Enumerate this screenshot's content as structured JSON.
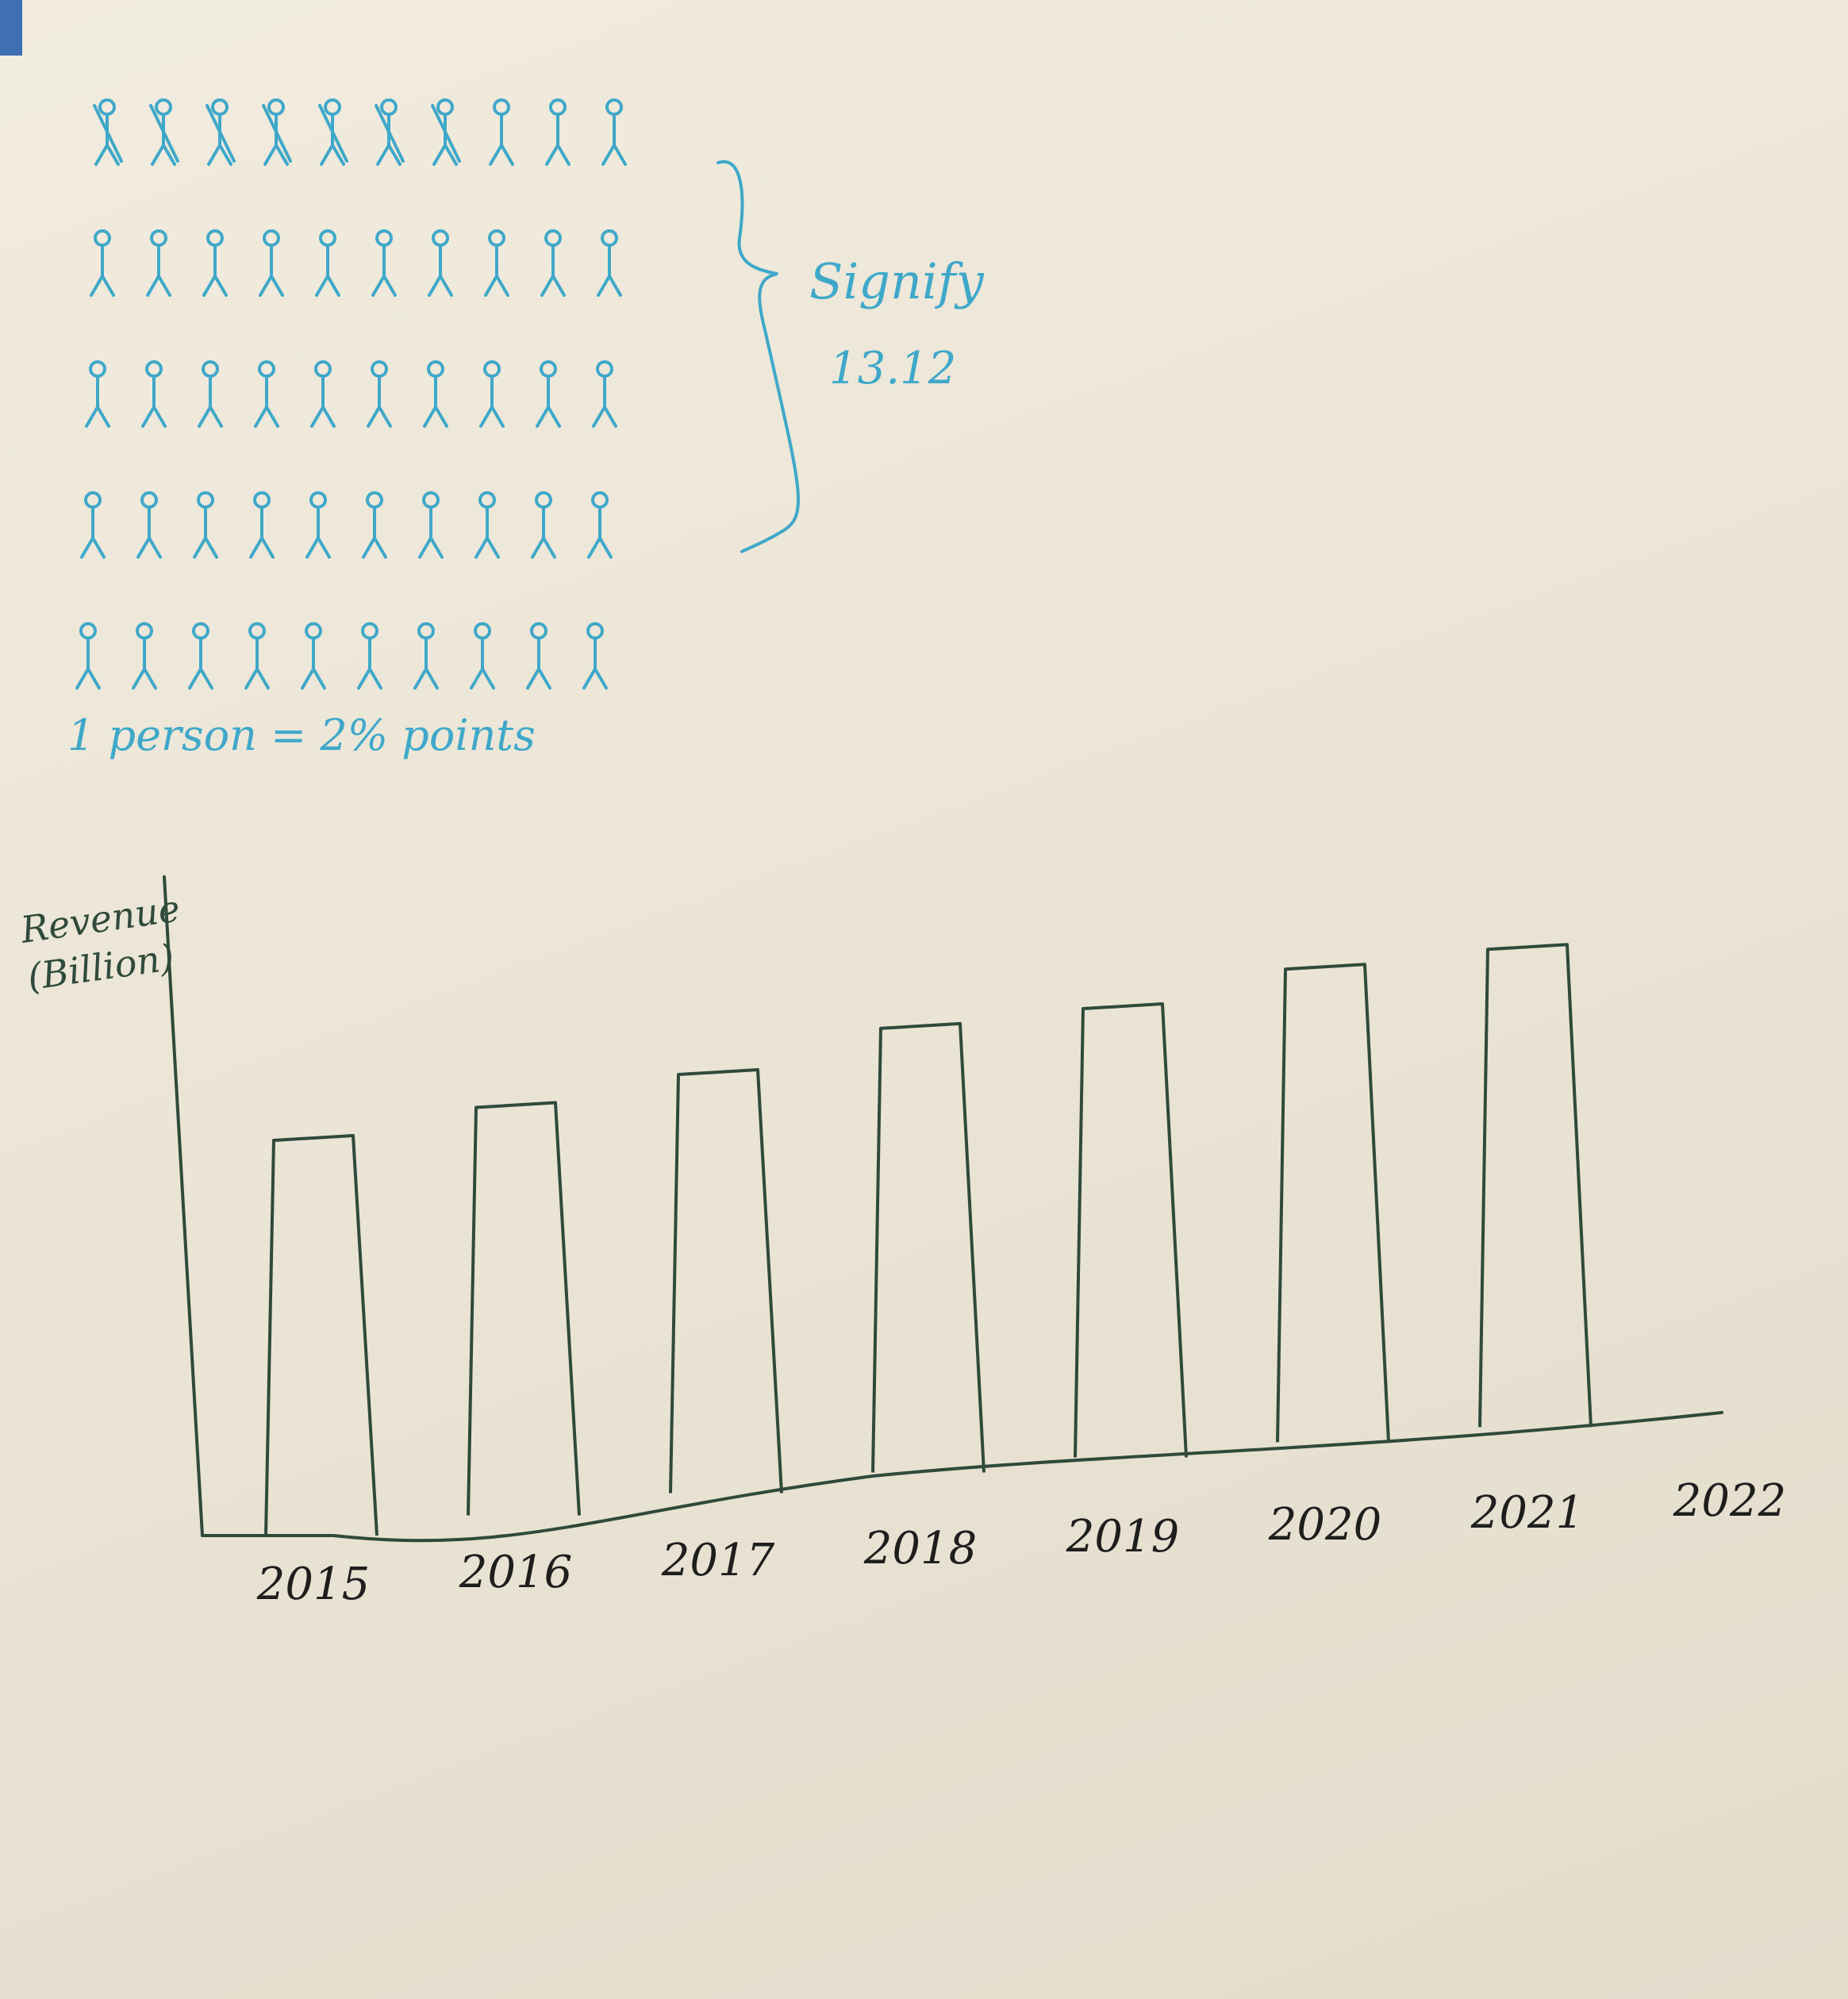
{
  "pictogram": {
    "rows": 5,
    "cols": 10,
    "crossed_count": 7,
    "brace_label": "Signify",
    "brace_value": "13.12",
    "legend": "1 person = 2% points",
    "ink_color": "#3fa8c9"
  },
  "chart_data": {
    "type": "bar",
    "categories": [
      "2015",
      "2016",
      "2017",
      "2018",
      "2019",
      "2020",
      "2021"
    ],
    "extra_tick_labels": [
      "2022"
    ],
    "values": [
      6.0,
      6.5,
      7.0,
      7.7,
      8.0,
      8.6,
      8.9
    ],
    "ylabel": "Revenue (Billion)",
    "xlabel": "",
    "title": "",
    "ylim": [
      0,
      10
    ],
    "grid": false,
    "ink_color": "#2f4a3a"
  }
}
